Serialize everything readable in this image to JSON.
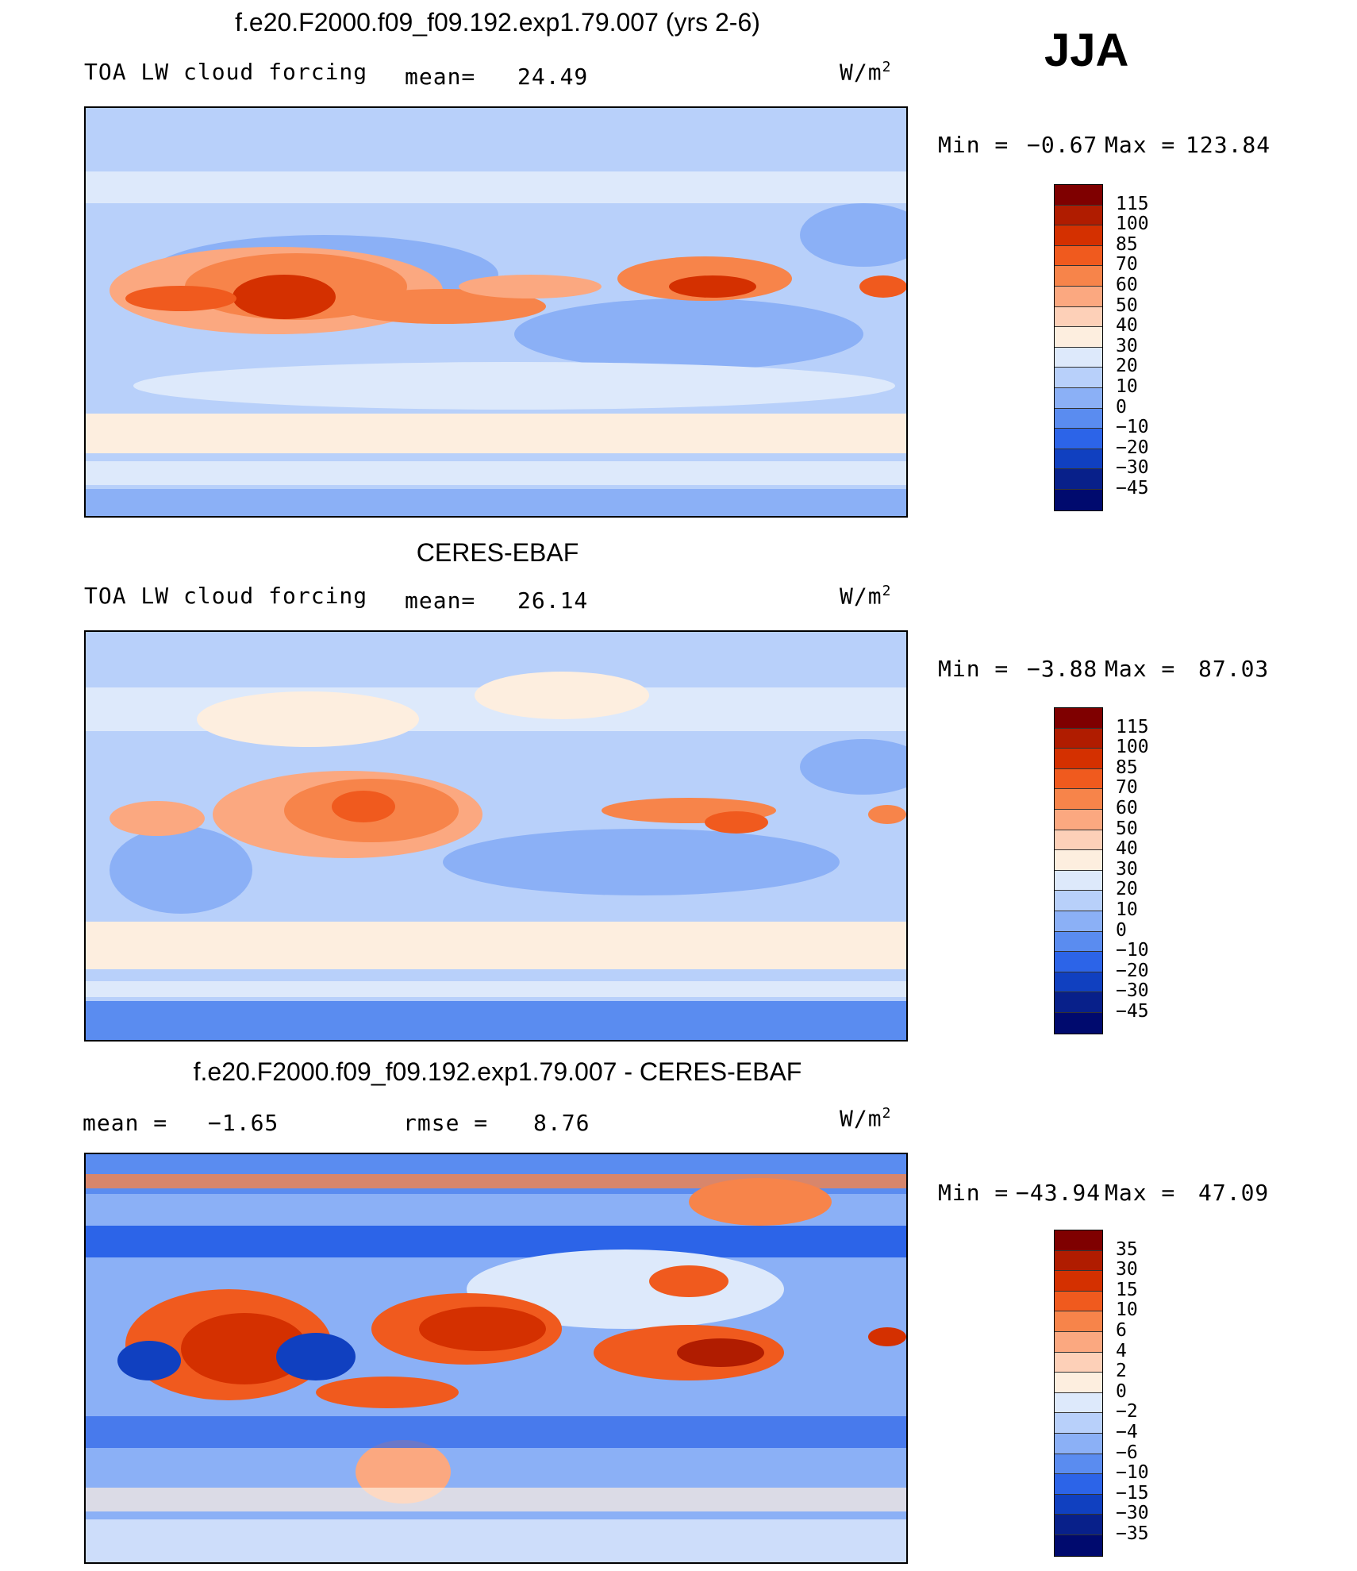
{
  "season": "JJA",
  "chart_data": [
    {
      "type": "heatmap",
      "title": "f.e20.F2000.f09_f09.192.exp1.79.007 (yrs 2-6)",
      "variable": "TOA LW cloud forcing",
      "stat_label": "mean=",
      "stat_value": "24.49",
      "units": "W/m",
      "units_exp": "2",
      "min_label": "Min =",
      "min_value": "−0.67",
      "max_label": "Max =",
      "max_value": "123.84",
      "colorbar_levels": [
        "115",
        "100",
        "85",
        "70",
        "60",
        "50",
        "40",
        "30",
        "20",
        "10",
        "0",
        "−10",
        "−20",
        "−30",
        "−45"
      ],
      "colorbar_colors": [
        "#7f0000",
        "#b01c00",
        "#d43000",
        "#f05a1e",
        "#f7844a",
        "#fba880",
        "#fdd0b8",
        "#fdeedf",
        "#dde9fb",
        "#b8d0fa",
        "#8bb0f6",
        "#5a8cf0",
        "#2c64e8",
        "#1040c0",
        "#08208a",
        "#000a6e"
      ]
    },
    {
      "type": "heatmap",
      "title": "CERES-EBAF",
      "variable": "TOA LW cloud forcing",
      "stat_label": "mean=",
      "stat_value": "26.14",
      "units": "W/m",
      "units_exp": "2",
      "min_label": "Min =",
      "min_value": "−3.88",
      "max_label": "Max =",
      "max_value": "87.03",
      "colorbar_levels": [
        "115",
        "100",
        "85",
        "70",
        "60",
        "50",
        "40",
        "30",
        "20",
        "10",
        "0",
        "−10",
        "−20",
        "−30",
        "−45"
      ],
      "colorbar_colors": [
        "#7f0000",
        "#b01c00",
        "#d43000",
        "#f05a1e",
        "#f7844a",
        "#fba880",
        "#fdd0b8",
        "#fdeedf",
        "#dde9fb",
        "#b8d0fa",
        "#8bb0f6",
        "#5a8cf0",
        "#2c64e8",
        "#1040c0",
        "#08208a",
        "#000a6e"
      ]
    },
    {
      "type": "heatmap",
      "title": "f.e20.F2000.f09_f09.192.exp1.79.007 - CERES-EBAF",
      "stat_label": "mean =",
      "stat_value": "−1.65",
      "rmse_label": "rmse =",
      "rmse_value": "8.76",
      "units": "W/m",
      "units_exp": "2",
      "min_label": "Min =",
      "min_value": "−43.94",
      "max_label": "Max =",
      "max_value": "47.09",
      "colorbar_levels": [
        "35",
        "30",
        "15",
        "10",
        "6",
        "4",
        "2",
        "0",
        "−2",
        "−4",
        "−6",
        "−10",
        "−15",
        "−30",
        "−35"
      ],
      "colorbar_colors": [
        "#7f0000",
        "#b01c00",
        "#d43000",
        "#f05a1e",
        "#f7844a",
        "#fba880",
        "#fdd0b8",
        "#fdeedf",
        "#dde9fb",
        "#b8d0fa",
        "#8bb0f6",
        "#5a8cf0",
        "#2c64e8",
        "#1040c0",
        "#08208a",
        "#000a6e"
      ]
    }
  ]
}
